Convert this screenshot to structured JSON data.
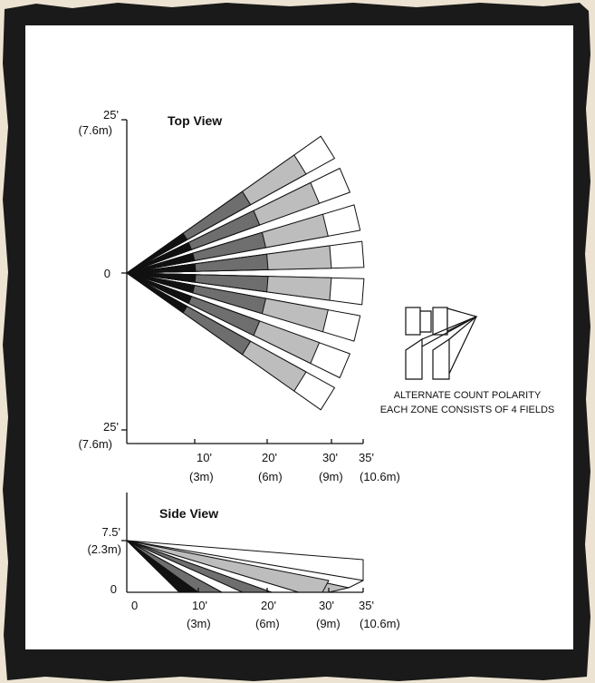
{
  "top_view": {
    "title": "Top View",
    "y_labels": {
      "top": [
        "25'",
        "(7.6m)"
      ],
      "middle": "0",
      "bottom": [
        "25'",
        "(7.6m)"
      ]
    },
    "x_labels": [
      {
        "ft": "10'",
        "m": "(3m)"
      },
      {
        "ft": "20'",
        "m": "(6m)"
      },
      {
        "ft": "30'",
        "m": "(9m)"
      },
      {
        "ft": "35'",
        "m": "(10.6m)"
      }
    ]
  },
  "side_view": {
    "title": "Side View",
    "y_labels": {
      "top": [
        "7.5'",
        "(2.3m)"
      ],
      "bottom": "0"
    },
    "x_labels": [
      {
        "ft": "0",
        "m": ""
      },
      {
        "ft": "10'",
        "m": "(3m)"
      },
      {
        "ft": "20'",
        "m": "(6m)"
      },
      {
        "ft": "30'",
        "m": "(9m)"
      },
      {
        "ft": "35'",
        "m": "(10.6m)"
      }
    ]
  },
  "legend": {
    "line1": "ALTERNATE COUNT POLARITY",
    "line2": "EACH ZONE CONSISTS OF 4 FIELDS"
  },
  "colors": {
    "paper_background": "#ece3d2",
    "frame_border": "#1a1a1a",
    "field_black": "#111111",
    "field_dark": "#6e6e6e",
    "field_light": "#bdbdbd",
    "field_white": "#ffffff"
  }
}
